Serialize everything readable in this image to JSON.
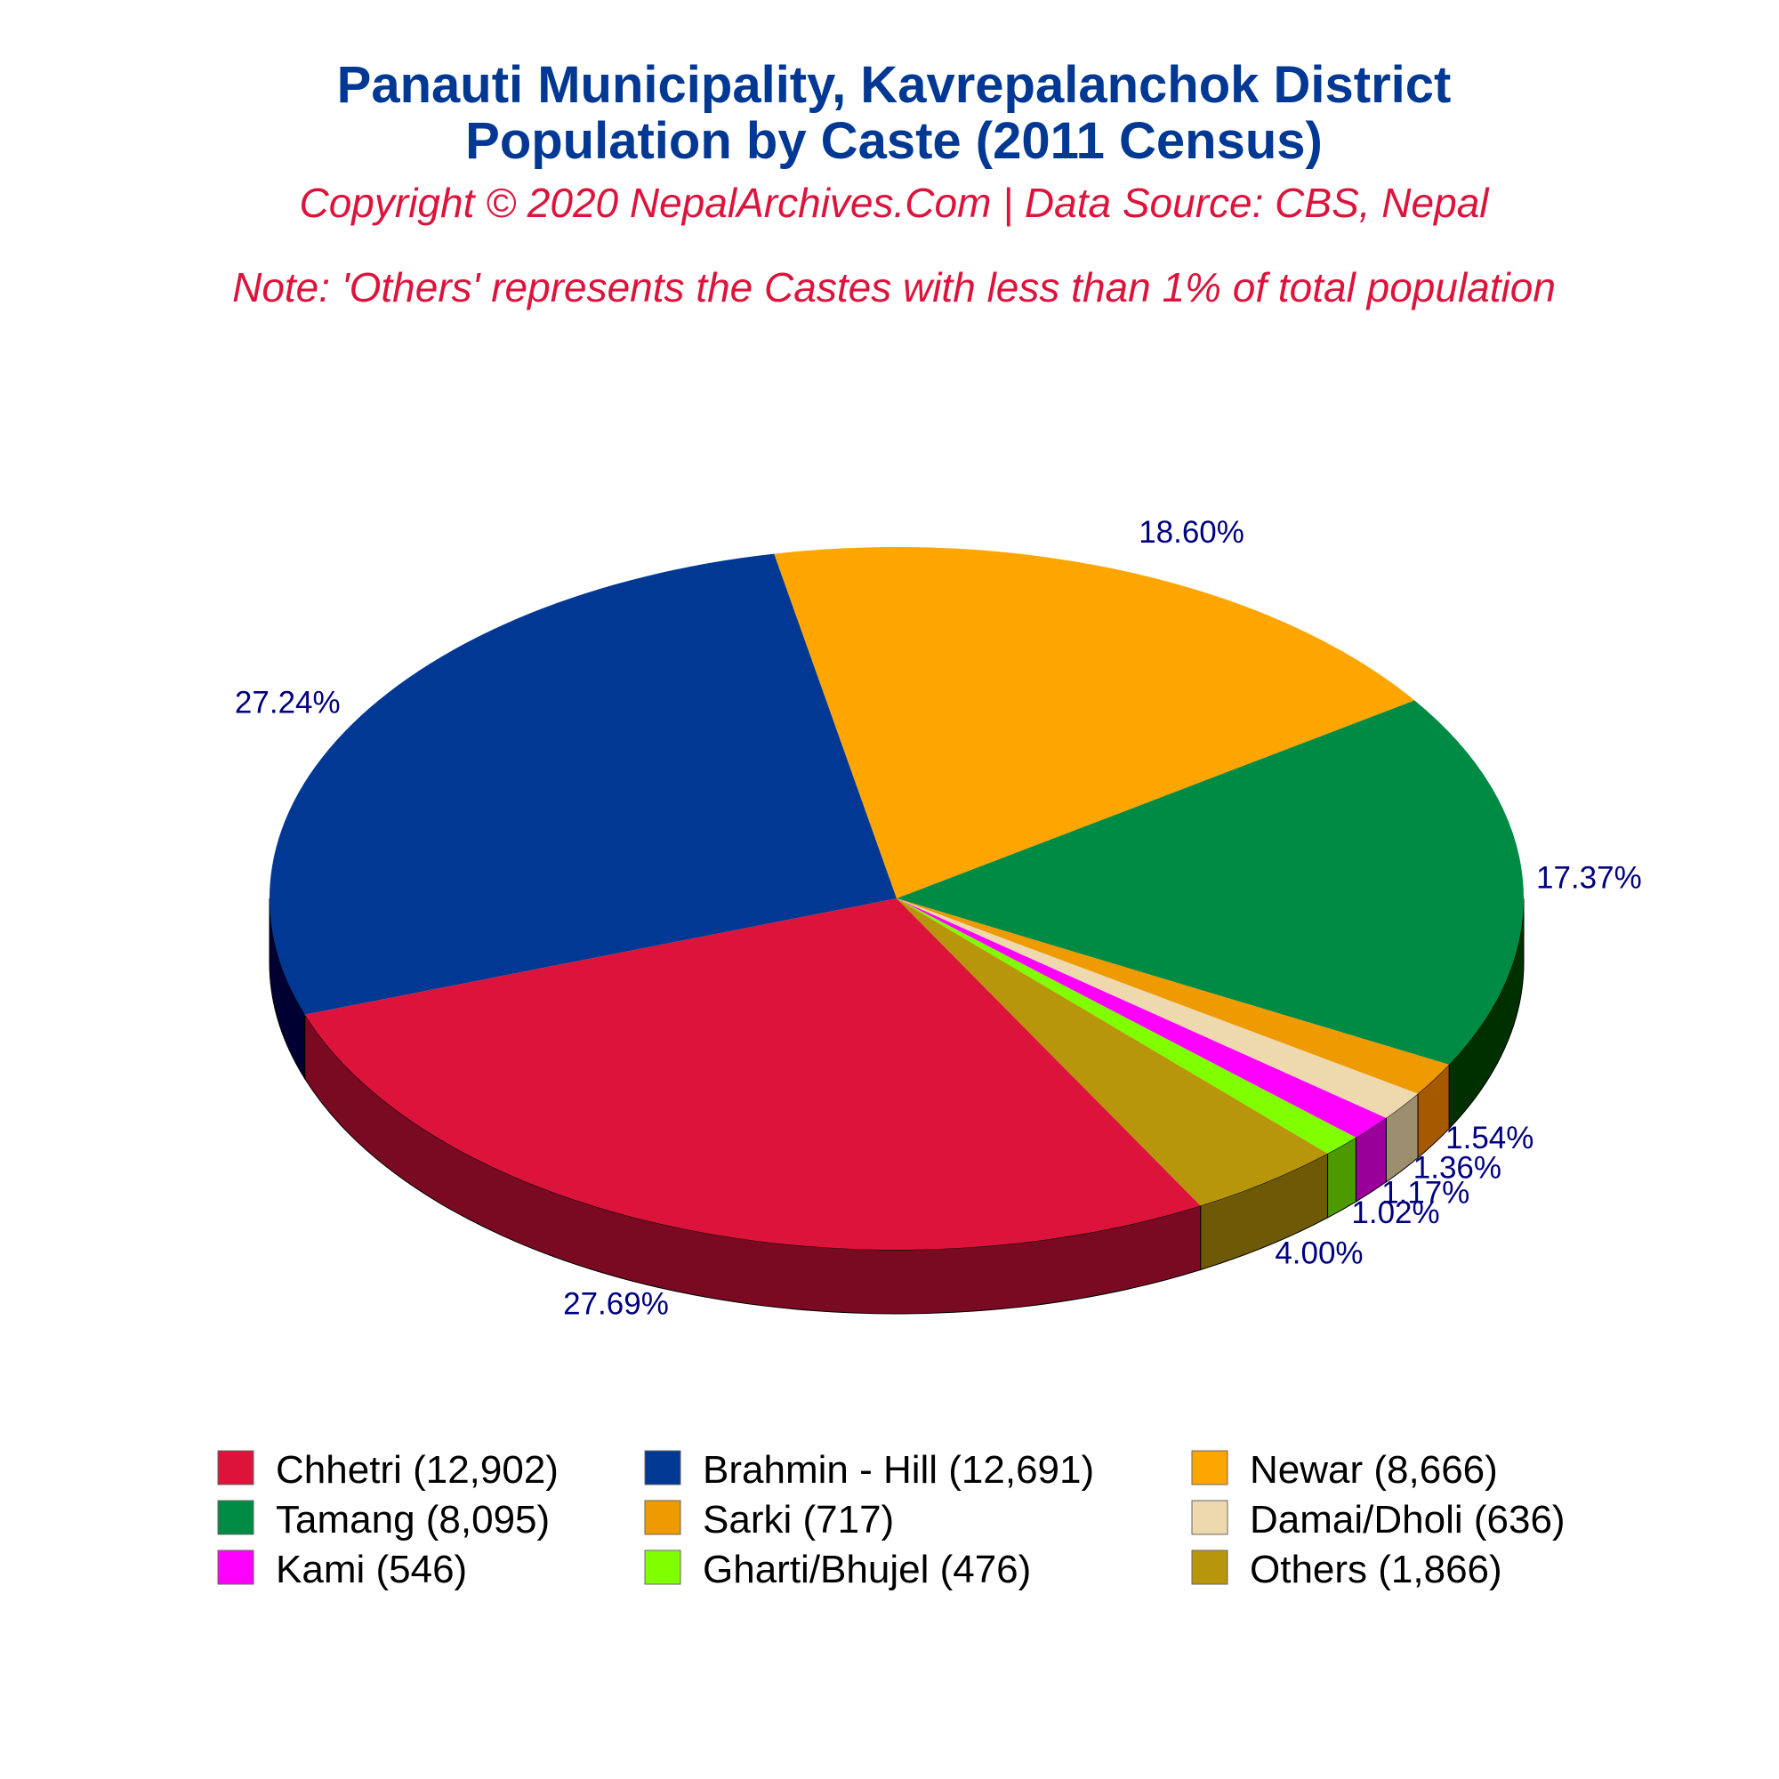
{
  "title": {
    "line1": "Panauti Municipality, Kavrepalanchok District",
    "line2": "Population by Caste (2011 Census)",
    "color": "#003893"
  },
  "copyright": "Copyright © 2020 NepalArchives.Com | Data Source: CBS, Nepal",
  "note": "Note: 'Others' represents the Castes with less than 1% of total population",
  "subtitle_color": "#DC143C",
  "label_color": "#000080",
  "chart_data": {
    "type": "pie",
    "style": "3d",
    "categories": [
      "Chhetri",
      "Brahmin - Hill",
      "Newar",
      "Tamang",
      "Sarki",
      "Damai/Dholi",
      "Kami",
      "Gharti/Bhujel",
      "Others"
    ],
    "values": [
      12902,
      12691,
      8666,
      8095,
      717,
      636,
      546,
      476,
      1866
    ],
    "percent_labels": [
      "27.69%",
      "27.24%",
      "18.60%",
      "17.37%",
      "1.54%",
      "1.36%",
      "1.17%",
      "1.02%",
      "4.00%"
    ],
    "legend_labels": [
      "Chhetri (12,902)",
      "Brahmin - Hill (12,691)",
      "Newar (8,666)",
      "Tamang (8,095)",
      "Sarki (717)",
      "Damai/Dholi (636)",
      "Kami (546)",
      "Gharti/Bhujel (476)",
      "Others (1,866)"
    ],
    "colors": [
      "#DC143C",
      "#003893",
      "#FFA500",
      "#008B45",
      "#EE9A00",
      "#EED8AE",
      "#FF00FF",
      "#7FFF00",
      "#B8960B"
    ],
    "side_colors": [
      "#7A0A21",
      "#000033",
      "#A64B00",
      "#003000",
      "#A65A00",
      "#9E8E70",
      "#990099",
      "#4D9900",
      "#6E5A06"
    ],
    "legend_position": "bottom",
    "legend_columns": 3
  }
}
